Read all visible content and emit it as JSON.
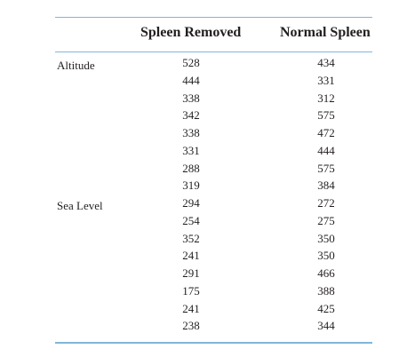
{
  "table": {
    "headers": [
      "Spleen Removed",
      "Normal Spleen"
    ],
    "groups": [
      {
        "label": "Altitude",
        "start_row": 0
      },
      {
        "label": "Sea Level",
        "start_row": 8
      }
    ],
    "rows": [
      {
        "spleen_removed": "528",
        "normal_spleen": "434"
      },
      {
        "spleen_removed": "444",
        "normal_spleen": "331"
      },
      {
        "spleen_removed": "338",
        "normal_spleen": "312"
      },
      {
        "spleen_removed": "342",
        "normal_spleen": "575"
      },
      {
        "spleen_removed": "338",
        "normal_spleen": "472"
      },
      {
        "spleen_removed": "331",
        "normal_spleen": "444"
      },
      {
        "spleen_removed": "288",
        "normal_spleen": "575"
      },
      {
        "spleen_removed": "319",
        "normal_spleen": "384"
      },
      {
        "spleen_removed": "294",
        "normal_spleen": "272"
      },
      {
        "spleen_removed": "254",
        "normal_spleen": "275"
      },
      {
        "spleen_removed": "352",
        "normal_spleen": "350"
      },
      {
        "spleen_removed": "241",
        "normal_spleen": "350"
      },
      {
        "spleen_removed": "291",
        "normal_spleen": "466"
      },
      {
        "spleen_removed": "175",
        "normal_spleen": "388"
      },
      {
        "spleen_removed": "241",
        "normal_spleen": "425"
      },
      {
        "spleen_removed": "238",
        "normal_spleen": "344"
      }
    ]
  },
  "colors": {
    "rule": "#7fb7d9",
    "text": "#231f20"
  }
}
